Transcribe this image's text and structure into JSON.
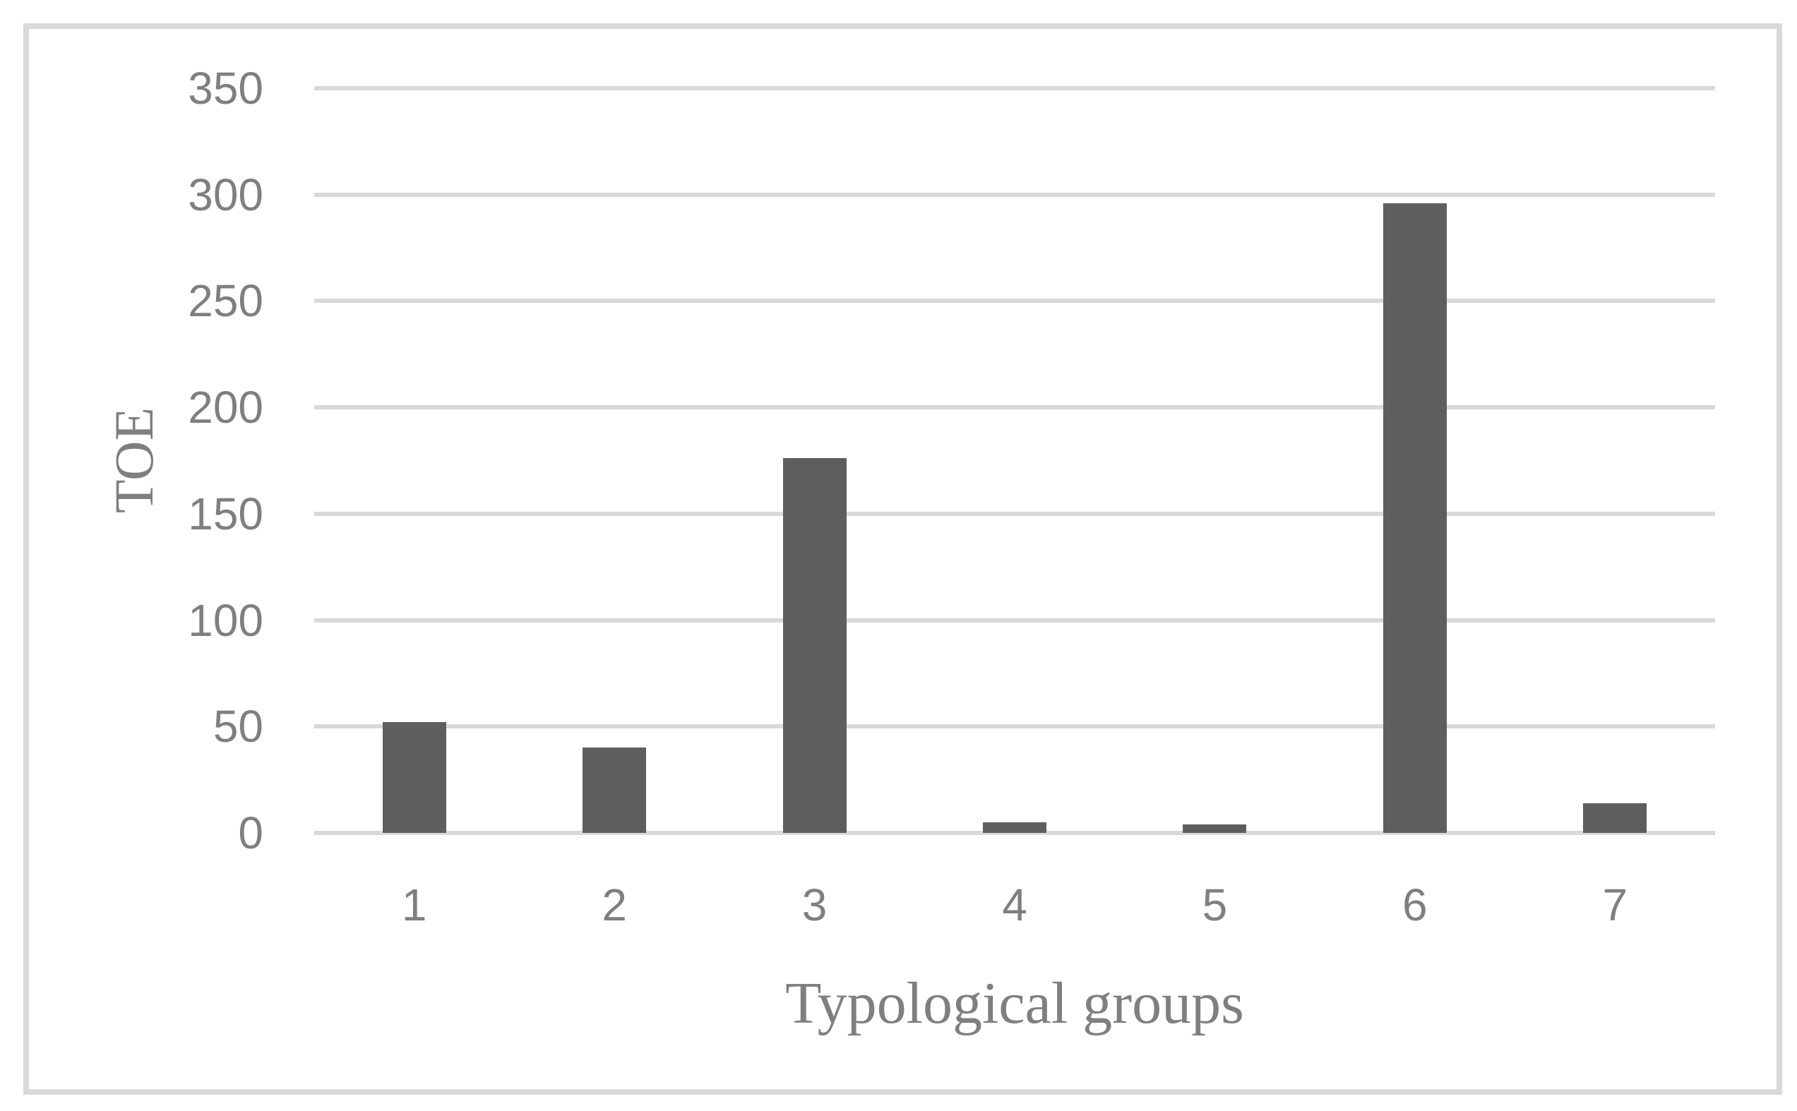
{
  "chart_data": {
    "type": "bar",
    "categories": [
      "1",
      "2",
      "3",
      "4",
      "5",
      "6",
      "7"
    ],
    "values": [
      52,
      40,
      176,
      5,
      4,
      296,
      14
    ],
    "series": [
      {
        "name": "TOE",
        "values": [
          52,
          40,
          176,
          5,
          4,
          296,
          14
        ]
      }
    ],
    "title": "",
    "xlabel": "Typological groups",
    "ylabel": "TOE",
    "ylim": [
      0,
      350
    ],
    "yticks": [
      0,
      50,
      100,
      150,
      200,
      250,
      300,
      350
    ],
    "grid": "horizontal",
    "legend": "none",
    "colors": {
      "bar_fill": "#5e5e5e",
      "gridline": "#d9d9d9",
      "tick_label": "#7f7f7f",
      "axis_title": "#7f7f7f",
      "chart_border": "#d9d9d9",
      "background": "#ffffff"
    }
  }
}
